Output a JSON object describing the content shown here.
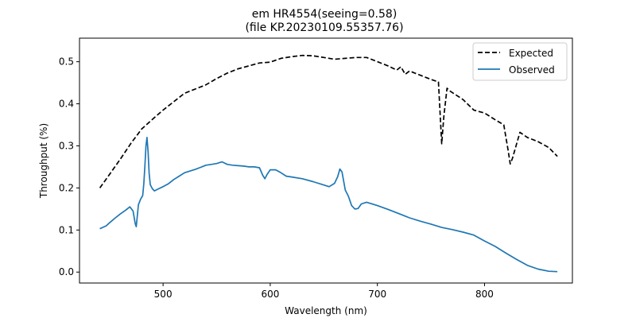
{
  "chart_data": {
    "type": "line",
    "title_line1": "em HR4554(seeing=0.58)",
    "title_line2": "(file KP.20230109.55357.76)",
    "xlabel": "Wavelength (nm)",
    "ylabel": "Throughput (%)",
    "xlim": [
      422,
      882
    ],
    "ylim": [
      -0.026,
      0.556
    ],
    "xticks": [
      500,
      600,
      700,
      800
    ],
    "yticks": [
      0.0,
      0.1,
      0.2,
      0.3,
      0.4,
      0.5
    ],
    "ytick_labels": [
      "0.0",
      "0.1",
      "0.2",
      "0.3",
      "0.4",
      "0.5"
    ],
    "grid": false,
    "legend_position": "top-right",
    "series": [
      {
        "name": "Expected",
        "color": "#000000",
        "style": "dashed",
        "x": [
          441,
          450,
          460,
          470,
          480,
          490,
          500,
          510,
          520,
          530,
          540,
          550,
          560,
          570,
          580,
          590,
          600,
          610,
          620,
          630,
          640,
          650,
          660,
          670,
          680,
          690,
          700,
          710,
          718,
          722,
          726,
          730,
          740,
          750,
          757,
          760,
          762,
          765,
          768,
          780,
          790,
          800,
          810,
          818,
          822,
          824,
          826,
          833,
          840,
          850,
          860,
          868
        ],
        "y": [
          0.2,
          0.232,
          0.268,
          0.306,
          0.34,
          0.363,
          0.385,
          0.405,
          0.425,
          0.435,
          0.445,
          0.46,
          0.473,
          0.483,
          0.49,
          0.497,
          0.499,
          0.508,
          0.512,
          0.515,
          0.514,
          0.51,
          0.506,
          0.508,
          0.51,
          0.51,
          0.5,
          0.49,
          0.48,
          0.488,
          0.47,
          0.478,
          0.468,
          0.458,
          0.452,
          0.305,
          0.37,
          0.437,
          0.43,
          0.41,
          0.385,
          0.378,
          0.362,
          0.35,
          0.29,
          0.257,
          0.27,
          0.332,
          0.32,
          0.31,
          0.296,
          0.275
        ]
      },
      {
        "name": "Observed",
        "color": "#1f77b4",
        "style": "solid",
        "x": [
          441,
          447,
          450,
          455,
          460,
          465,
          469,
          472,
          474,
          475,
          477,
          479,
          481,
          482,
          483,
          484,
          485,
          486,
          487,
          488,
          490,
          492,
          495,
          500,
          505,
          510,
          515,
          520,
          525,
          530,
          535,
          540,
          545,
          550,
          555,
          560,
          565,
          570,
          575,
          580,
          585,
          590,
          593,
          595,
          597,
          600,
          605,
          610,
          615,
          620,
          630,
          640,
          650,
          655,
          660,
          663,
          665,
          667,
          670,
          673,
          676,
          679,
          682,
          685,
          690,
          700,
          710,
          720,
          730,
          740,
          750,
          760,
          770,
          780,
          790,
          800,
          810,
          820,
          830,
          840,
          850,
          860,
          868
        ],
        "y": [
          0.103,
          0.11,
          0.117,
          0.128,
          0.138,
          0.147,
          0.155,
          0.145,
          0.115,
          0.108,
          0.16,
          0.173,
          0.182,
          0.21,
          0.25,
          0.3,
          0.32,
          0.285,
          0.235,
          0.208,
          0.198,
          0.193,
          0.197,
          0.203,
          0.21,
          0.22,
          0.228,
          0.236,
          0.24,
          0.244,
          0.249,
          0.254,
          0.256,
          0.258,
          0.262,
          0.256,
          0.254,
          0.253,
          0.252,
          0.25,
          0.25,
          0.248,
          0.23,
          0.222,
          0.232,
          0.243,
          0.243,
          0.236,
          0.228,
          0.226,
          0.222,
          0.215,
          0.207,
          0.203,
          0.211,
          0.227,
          0.245,
          0.238,
          0.195,
          0.18,
          0.158,
          0.15,
          0.151,
          0.162,
          0.166,
          0.158,
          0.149,
          0.139,
          0.129,
          0.121,
          0.114,
          0.106,
          0.101,
          0.095,
          0.088,
          0.074,
          0.061,
          0.045,
          0.03,
          0.016,
          0.007,
          0.002,
          0.001
        ]
      }
    ]
  }
}
